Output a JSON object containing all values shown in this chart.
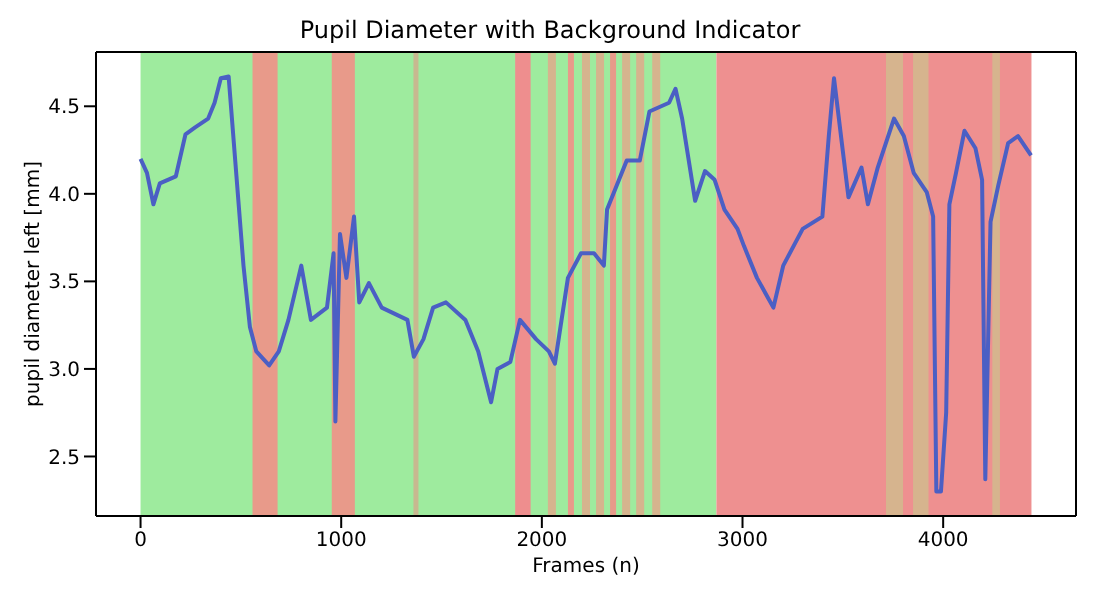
{
  "chart_data": {
    "type": "line",
    "title": "Pupil Diameter with Background Indicator",
    "xlabel": "Frames (n)",
    "ylabel": "pupil diameter left [mm]",
    "x": [
      0,
      32,
      64,
      96,
      176,
      224,
      272,
      337,
      369,
      400,
      439,
      465,
      513,
      545,
      577,
      641,
      689,
      737,
      801,
      849,
      929,
      962,
      971,
      994,
      1026,
      1064,
      1090,
      1138,
      1202,
      1330,
      1362,
      1410,
      1458,
      1522,
      1619,
      1683,
      1747,
      1779,
      1843,
      1891,
      1971,
      2035,
      2065,
      2130,
      2195,
      2260,
      2309,
      2325,
      2423,
      2488,
      2536,
      2634,
      2666,
      2699,
      2764,
      2813,
      2861,
      2910,
      2975,
      3008,
      3072,
      3154,
      3203,
      3300,
      3398,
      3430,
      3456,
      3495,
      3528,
      3593,
      3625,
      3674,
      3755,
      3804,
      3853,
      3918,
      3950,
      3966,
      3989,
      4015,
      4031,
      4064,
      4106,
      4161,
      4194,
      4210,
      4236,
      4275,
      4324,
      4373,
      4438
    ],
    "series": [
      {
        "color": "#4b5fc4",
        "values": [
          4.2,
          4.12,
          3.94,
          4.06,
          4.1,
          4.34,
          4.38,
          4.43,
          4.52,
          4.66,
          4.67,
          4.29,
          3.59,
          3.24,
          3.1,
          3.02,
          3.1,
          3.28,
          3.59,
          3.28,
          3.35,
          3.66,
          2.7,
          3.77,
          3.52,
          3.87,
          3.38,
          3.49,
          3.35,
          3.28,
          3.07,
          3.17,
          3.35,
          3.38,
          3.28,
          3.1,
          2.81,
          3.0,
          3.04,
          3.28,
          3.17,
          3.1,
          3.03,
          3.52,
          3.66,
          3.66,
          3.59,
          3.91,
          4.19,
          4.19,
          4.47,
          4.52,
          4.6,
          4.43,
          3.96,
          4.13,
          4.08,
          3.91,
          3.8,
          3.7,
          3.52,
          3.35,
          3.59,
          3.8,
          3.87,
          4.33,
          4.66,
          4.29,
          3.98,
          4.15,
          3.94,
          4.15,
          4.43,
          4.33,
          4.12,
          4.01,
          3.87,
          2.3,
          2.3,
          2.75,
          3.94,
          4.12,
          4.36,
          4.26,
          4.08,
          2.37,
          3.84,
          4.05,
          4.29,
          4.33,
          4.22
        ]
      }
    ],
    "xlim": [
      -222,
      4662
    ],
    "ylim": [
      2.16,
      4.81
    ],
    "xticks": [
      0,
      1000,
      2000,
      3000,
      4000
    ],
    "yticks": [
      2.5,
      {
        "value": 3,
        "label": "3.0"
      },
      3.5,
      {
        "value": 4,
        "label": "4.0"
      },
      4.5
    ],
    "bands": [
      {
        "axis": "x",
        "from": 0,
        "to": 2870,
        "color": "#9eeb9e"
      },
      {
        "axis": "x",
        "from": 558,
        "to": 683,
        "color": "#e89a8a"
      },
      {
        "axis": "x",
        "from": 953,
        "to": 1068,
        "color": "#e89a8a"
      },
      {
        "axis": "x",
        "from": 1360,
        "to": 1385,
        "color": "#c8b890"
      },
      {
        "axis": "x",
        "from": 1867,
        "to": 1944,
        "color": "#ee8e8e"
      },
      {
        "axis": "x",
        "from": 2030,
        "to": 2070,
        "color": "#d6b48e"
      },
      {
        "axis": "x",
        "from": 2130,
        "to": 2160,
        "color": "#e89a8a"
      },
      {
        "axis": "x",
        "from": 2200,
        "to": 2240,
        "color": "#d6b48e"
      },
      {
        "axis": "x",
        "from": 2270,
        "to": 2310,
        "color": "#d6b48e"
      },
      {
        "axis": "x",
        "from": 2340,
        "to": 2370,
        "color": "#e89a8a"
      },
      {
        "axis": "x",
        "from": 2400,
        "to": 2440,
        "color": "#d6b48e"
      },
      {
        "axis": "x",
        "from": 2470,
        "to": 2510,
        "color": "#d6b48e"
      },
      {
        "axis": "x",
        "from": 2550,
        "to": 2590,
        "color": "#d6b48e"
      },
      {
        "axis": "x",
        "from": 2870,
        "to": 4440,
        "color": "#ee9090"
      },
      {
        "axis": "x",
        "from": 3715,
        "to": 3800,
        "color": "#d6b48e"
      },
      {
        "axis": "x",
        "from": 3850,
        "to": 3927,
        "color": "#d6b48e"
      },
      {
        "axis": "x",
        "from": 4245,
        "to": 4283,
        "color": "#d6b48e"
      }
    ]
  }
}
